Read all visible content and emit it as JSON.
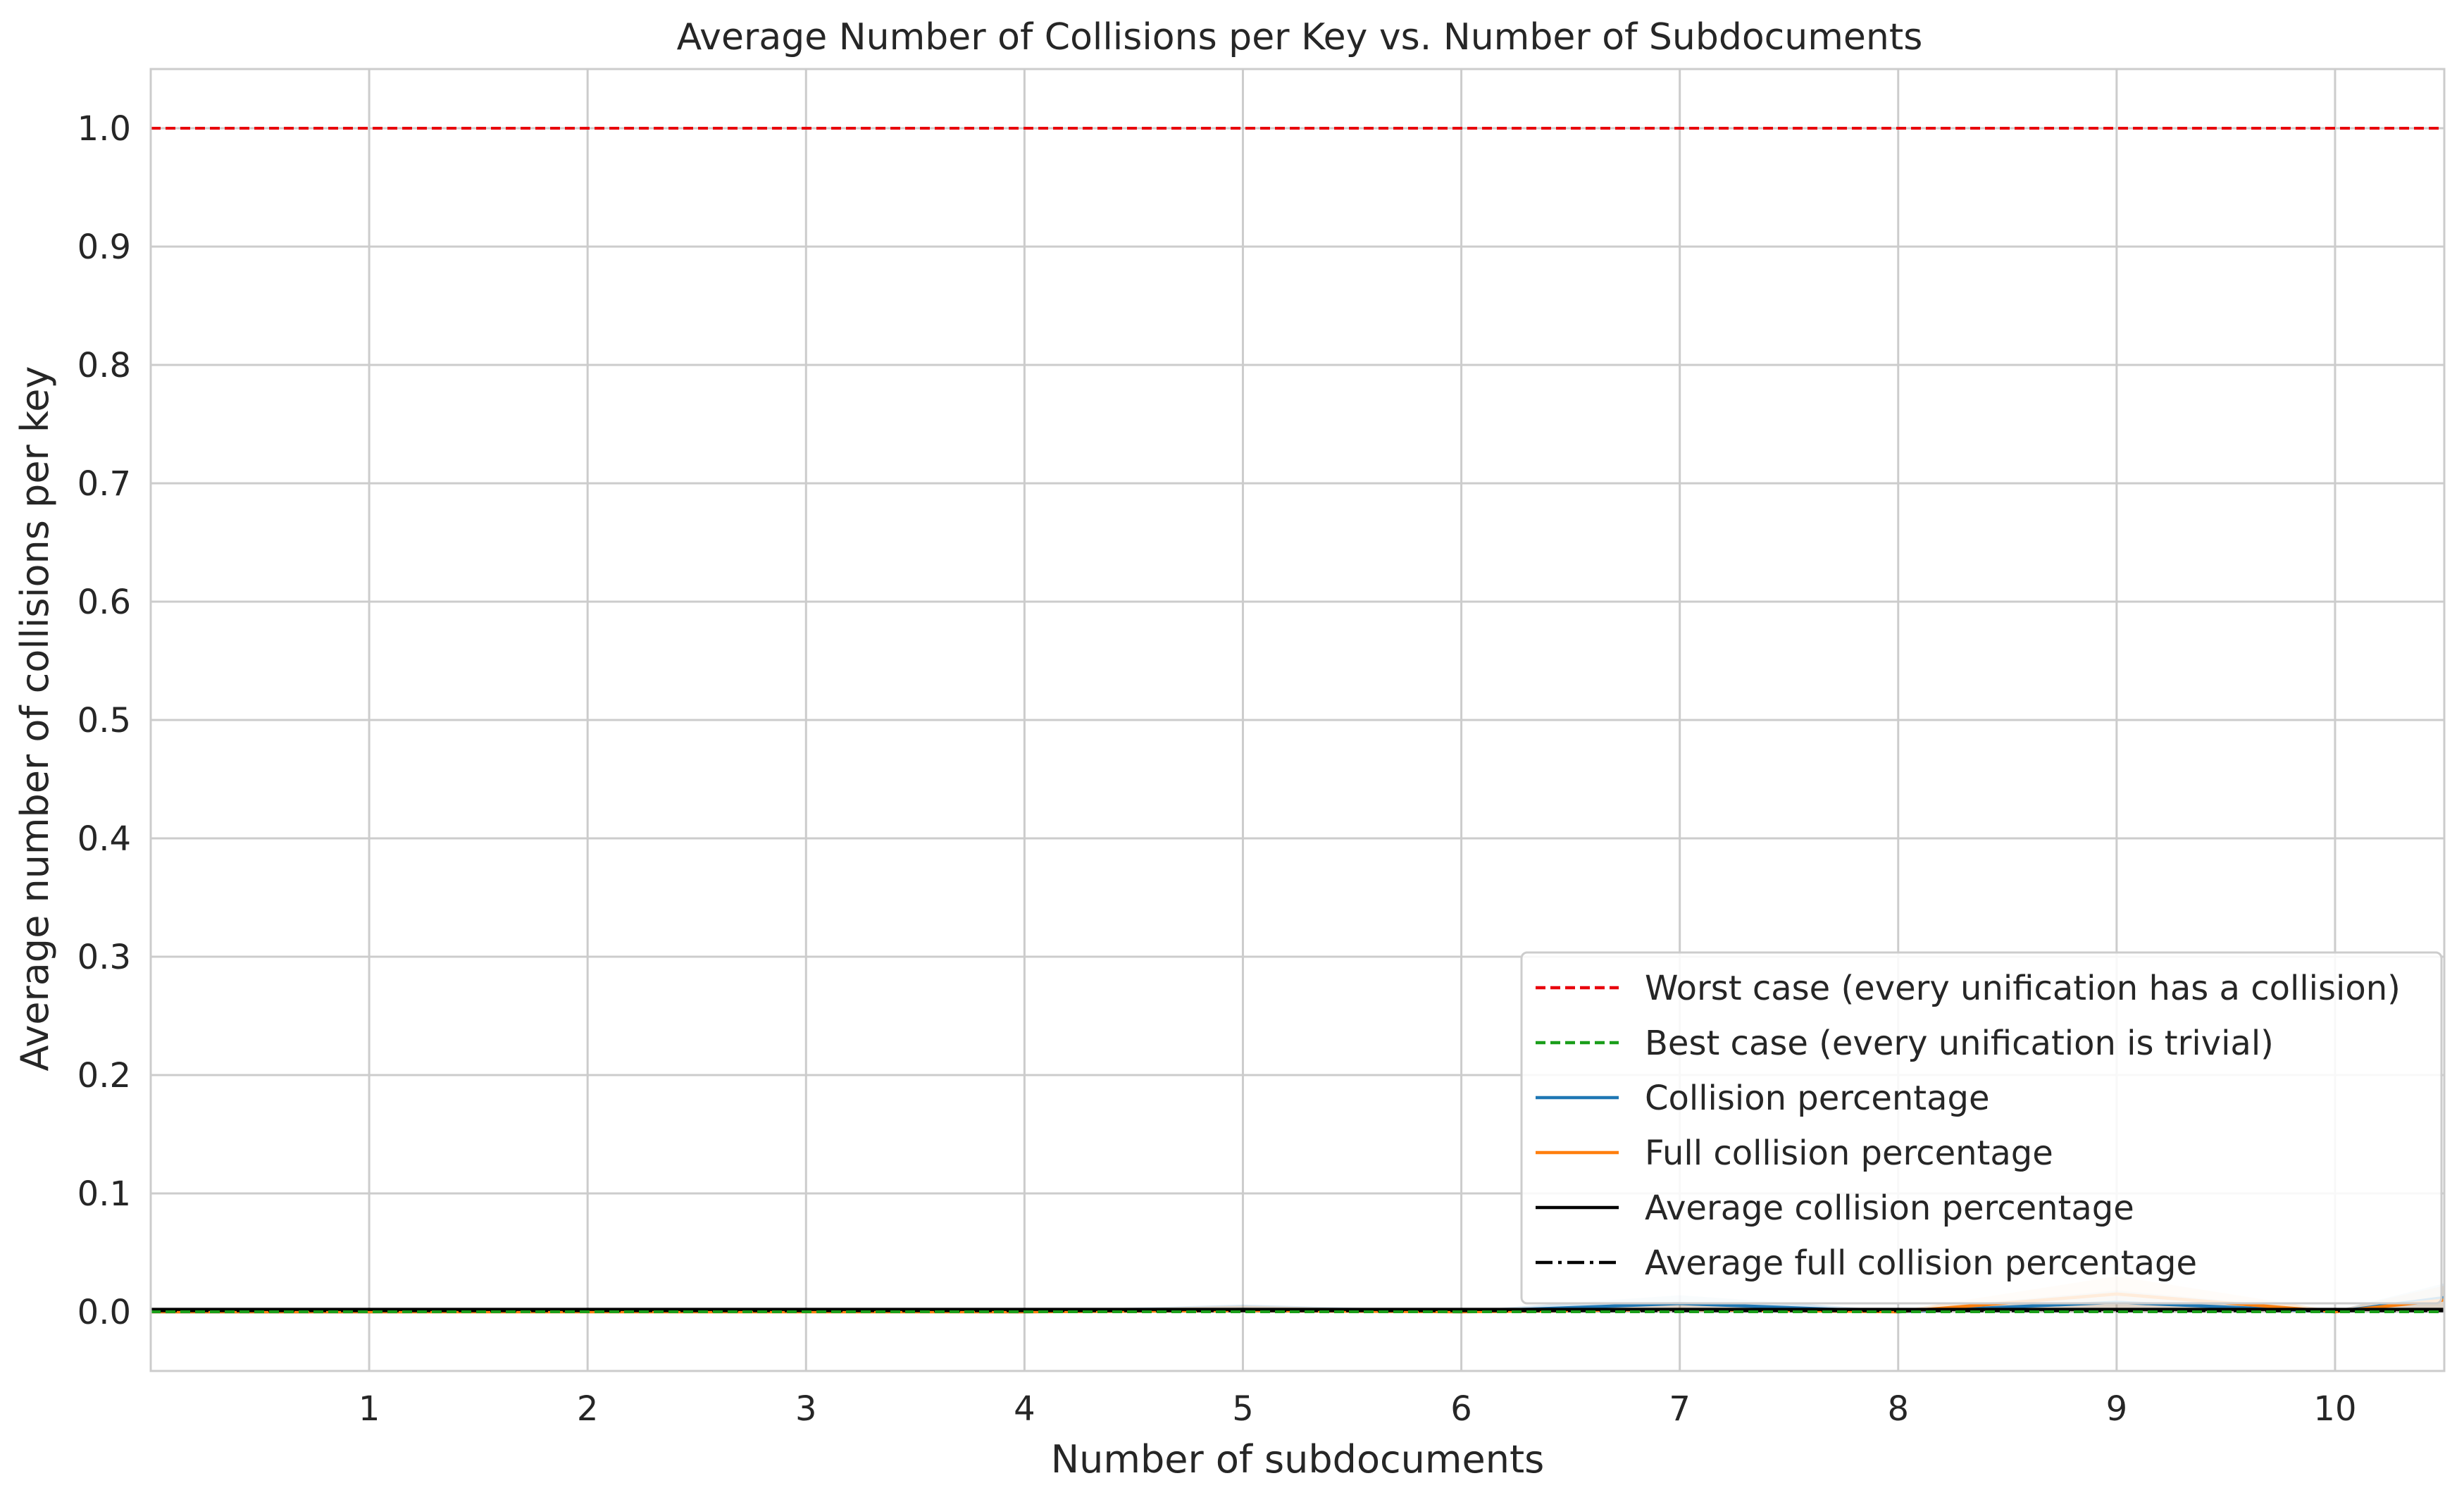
{
  "chart_data": {
    "type": "line",
    "title": "Average Number of Collisions per Key vs. Number of Subdocuments",
    "xlabel": "Number of subdocuments",
    "ylabel": "Average number of collisions per key",
    "xlim": [
      0,
      10.5
    ],
    "ylim": [
      -0.05,
      1.05
    ],
    "xticks": [
      "1",
      "2",
      "3",
      "4",
      "5",
      "6",
      "7",
      "8",
      "9",
      "10"
    ],
    "yticks": [
      "0.0",
      "0.1",
      "0.2",
      "0.3",
      "0.4",
      "0.5",
      "0.6",
      "0.7",
      "0.8",
      "0.9",
      "1.0"
    ],
    "grid": true,
    "legend_position": "lower-right",
    "x": [
      0,
      1,
      2,
      3,
      4,
      5,
      6,
      7,
      8,
      9,
      10,
      10.5
    ],
    "reference_lines": [
      {
        "name": "Worst case (every unification has a collision)",
        "y": 1.0,
        "color": "#e8000b",
        "style": "dashed"
      },
      {
        "name": "Best case (every unification is trivial)",
        "y": 0.0,
        "color": "#1a9e1a",
        "style": "dashed"
      }
    ],
    "series": [
      {
        "name": "Collision percentage",
        "color": "#1f77b4",
        "style": "solid",
        "values": [
          0,
          0,
          0.0005,
          0.0005,
          0,
          0.002,
          0,
          0.007,
          0,
          0.008,
          0,
          0.012
        ],
        "band_upper": [
          0,
          0,
          0.002,
          0.002,
          0.001,
          0.006,
          0.001,
          0.014,
          0.001,
          0.018,
          0.001,
          0.024
        ]
      },
      {
        "name": "Full collision percentage",
        "color": "#ff7f0e",
        "style": "solid",
        "values": [
          0,
          0,
          0,
          0,
          0,
          0.001,
          0,
          0.002,
          0,
          0.015,
          0,
          0.01
        ],
        "band_upper": [
          0,
          0,
          0.001,
          0.001,
          0.001,
          0.005,
          0.001,
          0.008,
          0.001,
          0.03,
          0.001,
          0.022
        ]
      },
      {
        "name": "Average collision percentage",
        "color": "#000000",
        "style": "solid",
        "values": [
          0.002,
          0.002,
          0.002,
          0.002,
          0.002,
          0.002,
          0.002,
          0.002,
          0.002,
          0.002,
          0.002,
          0.002
        ]
      },
      {
        "name": "Average full collision percentage",
        "color": "#000000",
        "style": "dashdot",
        "values": [
          0.001,
          0.001,
          0.001,
          0.001,
          0.001,
          0.001,
          0.001,
          0.001,
          0.001,
          0.001,
          0.001,
          0.001
        ]
      }
    ],
    "colors": {
      "grid": "#cccccc",
      "frame": "#cccccc",
      "text": "#262626"
    }
  }
}
